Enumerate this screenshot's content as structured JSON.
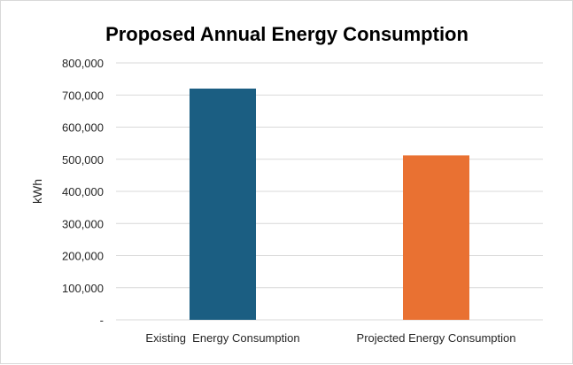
{
  "chart_data": {
    "type": "bar",
    "title": "Proposed Annual Energy Consumption",
    "xlabel": "",
    "ylabel": "kWh",
    "categories": [
      "Existing  Energy Consumption",
      "Projected Energy Consumption"
    ],
    "values": [
      720000,
      512000
    ],
    "bar_colors": [
      "#1b5e82",
      "#e97132"
    ],
    "ylim": [
      0,
      800000
    ],
    "yticks": [
      0,
      100000,
      200000,
      300000,
      400000,
      500000,
      600000,
      700000,
      800000
    ],
    "ytick_labels": [
      "-",
      "100,000",
      "200,000",
      "300,000",
      "400,000",
      "500,000",
      "600,000",
      "700,000",
      "800,000"
    ],
    "grid": true,
    "legend": "none"
  }
}
